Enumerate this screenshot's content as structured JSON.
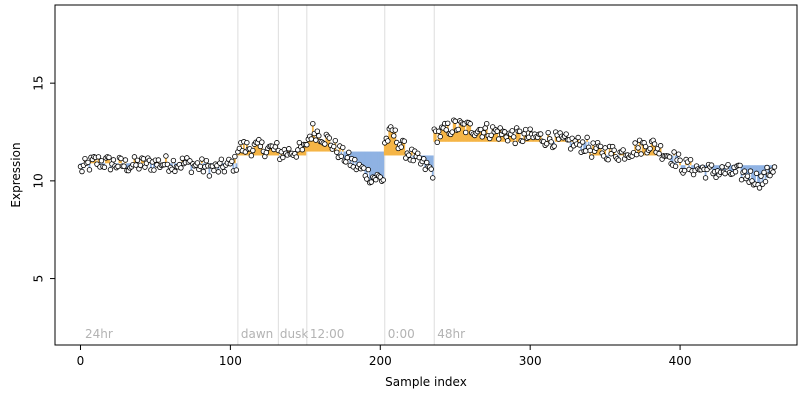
{
  "chart_data": {
    "type": "scatter",
    "xlabel": "Sample index",
    "ylabel": "Expression",
    "xlim": [
      -17,
      478
    ],
    "ylim": [
      1.6,
      19.0
    ],
    "x_ticks": [
      "0",
      "100",
      "200",
      "300",
      "400"
    ],
    "x_tick_values": [
      0,
      100,
      200,
      300,
      400
    ],
    "y_ticks": [
      "5",
      "10",
      "15"
    ],
    "y_tick_values": [
      5,
      10,
      15
    ],
    "grid": false,
    "legend": "none",
    "colors": {
      "above_baseline": "#f5b547",
      "below_baseline": "#8fb2e3",
      "divider": "#dddddd",
      "point_fill": "#ffffff",
      "point_stroke": "#000000"
    },
    "condition_dividers": [
      105,
      132,
      151,
      203,
      236
    ],
    "condition_labels": [
      {
        "x": 3,
        "text": "24hr"
      },
      {
        "x": 107,
        "text": "dawn"
      },
      {
        "x": 133,
        "text": "dusk"
      },
      {
        "x": 153,
        "text": "12:00"
      },
      {
        "x": 205,
        "text": "0:00"
      },
      {
        "x": 238,
        "text": "48hr"
      }
    ],
    "segment_baselines": [
      {
        "start": 0,
        "end": 105,
        "baseline": 10.9
      },
      {
        "start": 105,
        "end": 132,
        "baseline": 11.3
      },
      {
        "start": 132,
        "end": 151,
        "baseline": 11.3
      },
      {
        "start": 151,
        "end": 203,
        "baseline": 11.5
      },
      {
        "start": 203,
        "end": 236,
        "baseline": 11.3
      },
      {
        "start": 236,
        "end": 340,
        "baseline": 12.0
      },
      {
        "start": 340,
        "end": 400,
        "baseline": 11.3
      },
      {
        "start": 400,
        "end": 463,
        "baseline": 10.8
      }
    ],
    "trend_anchors": [
      [
        0,
        10.6
      ],
      [
        10,
        11.0
      ],
      [
        30,
        10.8
      ],
      [
        50,
        10.9
      ],
      [
        70,
        10.9
      ],
      [
        90,
        10.6
      ],
      [
        104,
        10.9
      ],
      [
        105,
        11.7
      ],
      [
        118,
        11.7
      ],
      [
        131,
        11.6
      ],
      [
        132,
        11.4
      ],
      [
        140,
        11.5
      ],
      [
        150,
        11.6
      ],
      [
        151,
        12.0
      ],
      [
        155,
        12.6
      ],
      [
        165,
        12.1
      ],
      [
        175,
        11.3
      ],
      [
        185,
        10.7
      ],
      [
        195,
        10.2
      ],
      [
        202,
        10.1
      ],
      [
        203,
        12.0
      ],
      [
        208,
        12.5
      ],
      [
        215,
        11.7
      ],
      [
        225,
        11.0
      ],
      [
        235,
        10.5
      ],
      [
        236,
        12.3
      ],
      [
        250,
        12.8
      ],
      [
        270,
        12.6
      ],
      [
        290,
        12.3
      ],
      [
        310,
        12.2
      ],
      [
        330,
        11.9
      ],
      [
        339,
        11.8
      ],
      [
        340,
        11.6
      ],
      [
        360,
        11.4
      ],
      [
        380,
        11.9
      ],
      [
        399,
        11.0
      ],
      [
        400,
        10.8
      ],
      [
        420,
        10.5
      ],
      [
        440,
        10.4
      ],
      [
        455,
        10.0
      ],
      [
        463,
        10.8
      ]
    ],
    "n_points": 464,
    "noise_amplitude": 0.42
  }
}
